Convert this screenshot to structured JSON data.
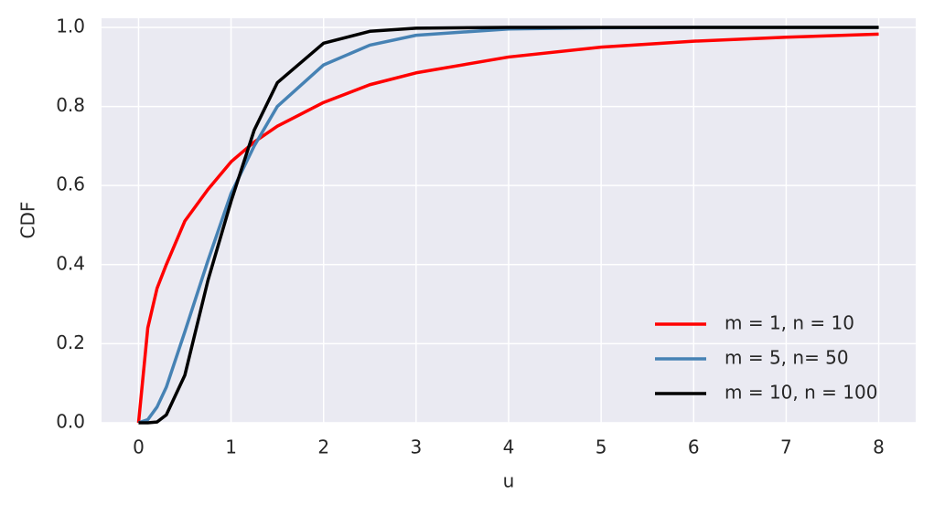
{
  "chart_data": {
    "type": "line",
    "xlabel": "u",
    "ylabel": "CDF",
    "x": [
      0,
      0.1,
      0.2,
      0.3,
      0.5,
      0.75,
      1,
      1.25,
      1.5,
      2,
      2.5,
      3,
      4,
      5,
      6,
      7,
      8
    ],
    "series": [
      {
        "name": "m = 1, n = 10",
        "color": "#ff0000",
        "values": [
          0,
          0.24,
          0.34,
          0.4,
          0.51,
          0.59,
          0.66,
          0.71,
          0.75,
          0.81,
          0.855,
          0.885,
          0.925,
          0.95,
          0.965,
          0.975,
          0.983
        ]
      },
      {
        "name": "m = 5, n= 50",
        "color": "#4682b4",
        "values": [
          0,
          0.008,
          0.04,
          0.09,
          0.23,
          0.41,
          0.58,
          0.7,
          0.8,
          0.905,
          0.955,
          0.98,
          0.996,
          0.999,
          1.0,
          1.0,
          1.0
        ]
      },
      {
        "name": "m = 10, n = 100",
        "color": "#000000",
        "values": [
          0,
          0.0,
          0.002,
          0.02,
          0.12,
          0.36,
          0.56,
          0.74,
          0.86,
          0.96,
          0.99,
          0.998,
          1.0,
          1.0,
          1.0,
          1.0,
          1.0
        ]
      }
    ],
    "xlim": [
      -0.4,
      8.4
    ],
    "ylim": [
      0,
      1.023
    ],
    "xticks": [
      0,
      1,
      2,
      3,
      4,
      5,
      6,
      7,
      8
    ],
    "yticks": [
      {
        "value": 0,
        "label": "0.0"
      },
      0.2,
      0.4,
      0.6,
      0.8,
      {
        "value": 1,
        "label": "1.0"
      }
    ],
    "grid": true,
    "legend": "lower right"
  }
}
